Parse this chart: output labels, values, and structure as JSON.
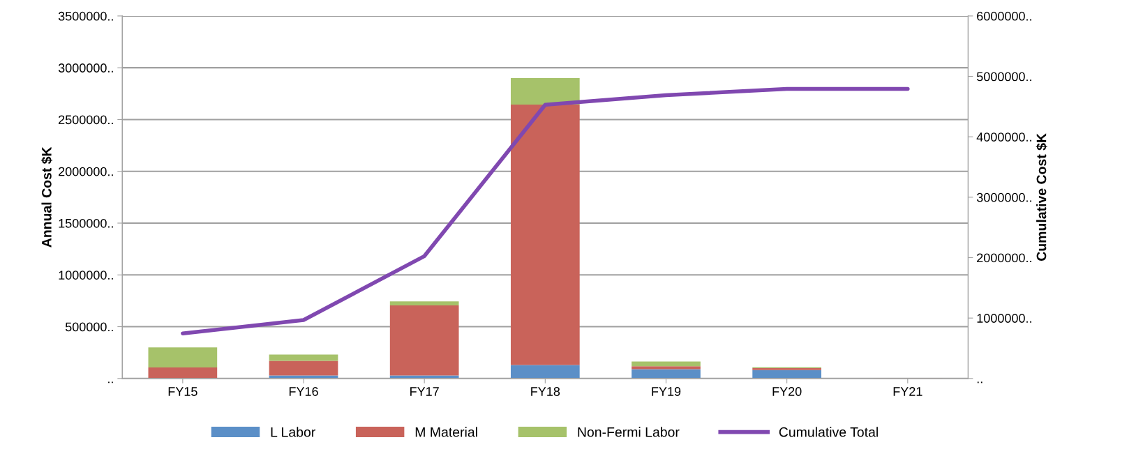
{
  "chart_data": {
    "type": "bar",
    "stacked": true,
    "ylabel": "Annual Cost $K",
    "y2label": "Cumulative Cost $K",
    "categories": [
      "FY15",
      "FY16",
      "FY17",
      "FY18",
      "FY19",
      "FY20",
      "FY21"
    ],
    "series": [
      {
        "name": "L Labor",
        "color": "#5b8fc7",
        "values": [
          0,
          29000,
          29000,
          130000,
          90000,
          82000,
          0
        ]
      },
      {
        "name": "M Material",
        "color": "#c9635a",
        "values": [
          107000,
          142000,
          676000,
          2515000,
          28000,
          18000,
          3000
        ]
      },
      {
        "name": "Non-Fermi Labor",
        "color": "#a6c26a",
        "values": [
          193000,
          60000,
          40000,
          255000,
          46000,
          9000,
          0
        ]
      },
      {
        "name": "Cumulative Total",
        "type": "line",
        "axis": "y2",
        "color": "#8048b0",
        "values": [
          745000,
          968000,
          2025000,
          4530000,
          4690000,
          4792000,
          4792000
        ]
      }
    ],
    "ylim": [
      0,
      3500000
    ],
    "yticks": [
      {
        "value": 0,
        "label": ".."
      },
      {
        "value": 500000,
        "label": "500000.."
      },
      {
        "value": 1000000,
        "label": "1000000.."
      },
      {
        "value": 1500000,
        "label": "1500000.."
      },
      {
        "value": 2000000,
        "label": "2000000.."
      },
      {
        "value": 2500000,
        "label": "2500000.."
      },
      {
        "value": 3000000,
        "label": "3000000.."
      },
      {
        "value": 3500000,
        "label": "3500000.."
      }
    ],
    "y2lim": [
      0,
      6000000
    ],
    "y2ticks": [
      {
        "value": 0,
        "label": ".."
      },
      {
        "value": 1000000,
        "label": "1000000.."
      },
      {
        "value": 2000000,
        "label": "2000000.."
      },
      {
        "value": 3000000,
        "label": "3000000.."
      },
      {
        "value": 4000000,
        "label": "4000000.."
      },
      {
        "value": 5000000,
        "label": "5000000.."
      },
      {
        "value": 6000000,
        "label": "6000000.."
      }
    ],
    "grid": "y",
    "legend": "bottom",
    "marker": "none"
  }
}
